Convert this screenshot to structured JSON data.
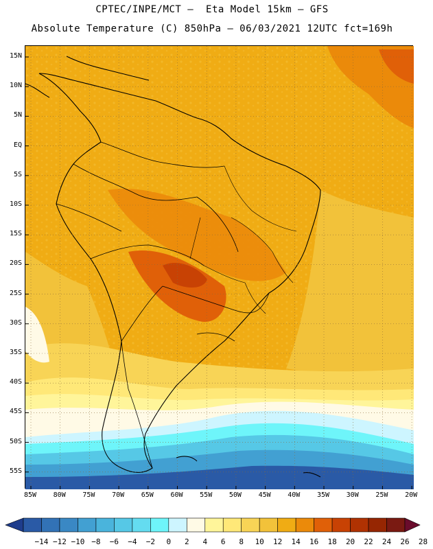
{
  "header": {
    "title_line1": "CPTEC/INPE/MCT –  Eta Model 15km – GFS",
    "title_line2": "Absolute Temperature (C) 850hPa – 06/03/2021 12UTC fct=169h"
  },
  "map": {
    "lat_labels": [
      "15N",
      "10N",
      "5N",
      "EQ",
      "5S",
      "10S",
      "15S",
      "20S",
      "25S",
      "30S",
      "35S",
      "40S",
      "45S",
      "50S",
      "55S"
    ],
    "lon_labels": [
      "85W",
      "80W",
      "75W",
      "70W",
      "65W",
      "60W",
      "55W",
      "50W",
      "45W",
      "40W",
      "35W",
      "30W",
      "25W",
      "20W"
    ]
  },
  "colorbar": {
    "colors": [
      "#1e3c8c",
      "#2a5aa6",
      "#3272b6",
      "#3a88c4",
      "#42a0d2",
      "#4ab4dc",
      "#56c8e6",
      "#64dcf0",
      "#6ef5fa",
      "#cdf5ff",
      "#fffae6",
      "#fff59a",
      "#ffe878",
      "#f8d456",
      "#f2c23a",
      "#f0ac14",
      "#eb8a0a",
      "#e06008",
      "#c84204",
      "#b03202",
      "#962602",
      "#7a1a12",
      "#6a0c2c"
    ],
    "labels": [
      "-14",
      "-12",
      "-10",
      "-8",
      "-6",
      "-4",
      "-2",
      "0",
      "2",
      "4",
      "6",
      "8",
      "10",
      "12",
      "14",
      "16",
      "18",
      "20",
      "22",
      "24",
      "26",
      "28"
    ]
  }
}
